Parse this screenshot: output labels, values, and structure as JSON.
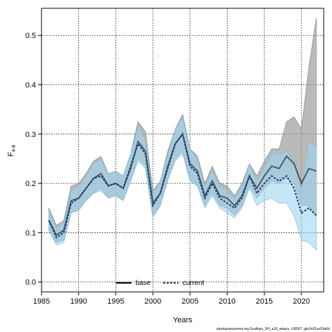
{
  "chart_data": {
    "type": "line",
    "xlabel": "Years",
    "ylabel": "F",
    "ylabel_sub": "4-8",
    "xlim": [
      1985,
      2023
    ],
    "ylim": [
      -0.02,
      0.555
    ],
    "xticks": [
      1985,
      1990,
      1995,
      2000,
      2005,
      2010,
      2015,
      2020
    ],
    "yticks": [
      0.0,
      0.1,
      0.2,
      0.3,
      0.4,
      0.5
    ],
    "ytick_labels": [
      "0.0",
      "0.1",
      "0.2",
      "0.3",
      "0.4",
      "0.5"
    ],
    "grid": true,
    "legend_position": "bottom-center",
    "x": [
      1986,
      1987,
      1988,
      1989,
      1990,
      1991,
      1992,
      1993,
      1994,
      1995,
      1996,
      1997,
      1998,
      1999,
      2000,
      2001,
      2002,
      2003,
      2004,
      2005,
      2006,
      2007,
      2008,
      2009,
      2010,
      2011,
      2012,
      2013,
      2014,
      2015,
      2016,
      2017,
      2018,
      2019,
      2020,
      2021,
      2022
    ],
    "series": [
      {
        "name": "base",
        "color": "#000000",
        "band_color": "#9c9c9c",
        "values": [
          0.125,
          0.095,
          0.105,
          0.165,
          0.17,
          0.19,
          0.21,
          0.22,
          0.195,
          0.2,
          0.19,
          0.23,
          0.285,
          0.265,
          0.16,
          0.18,
          0.235,
          0.28,
          0.3,
          0.24,
          0.225,
          0.175,
          0.205,
          0.175,
          0.17,
          0.155,
          0.175,
          0.215,
          0.19,
          0.215,
          0.235,
          0.23,
          0.255,
          0.24,
          0.2,
          0.23,
          0.225
        ],
        "lower": [
          0.105,
          0.08,
          0.085,
          0.14,
          0.145,
          0.165,
          0.18,
          0.19,
          0.17,
          0.175,
          0.165,
          0.205,
          0.25,
          0.235,
          0.135,
          0.155,
          0.21,
          0.25,
          0.265,
          0.205,
          0.195,
          0.155,
          0.18,
          0.155,
          0.15,
          0.135,
          0.155,
          0.195,
          0.17,
          0.19,
          0.205,
          0.2,
          0.21,
          0.2,
          0.155,
          0.155,
          0.135
        ],
        "upper": [
          0.15,
          0.115,
          0.125,
          0.195,
          0.2,
          0.22,
          0.245,
          0.255,
          0.22,
          0.225,
          0.215,
          0.26,
          0.325,
          0.305,
          0.185,
          0.205,
          0.265,
          0.31,
          0.34,
          0.27,
          0.255,
          0.2,
          0.235,
          0.2,
          0.195,
          0.175,
          0.2,
          0.24,
          0.215,
          0.245,
          0.27,
          0.27,
          0.325,
          0.335,
          0.31,
          0.435,
          0.535
        ]
      },
      {
        "name": "current",
        "color": "#1a3c6e",
        "band_color": "#9fd6f2",
        "values": [
          0.125,
          0.09,
          0.1,
          0.16,
          0.17,
          0.19,
          0.21,
          0.215,
          0.195,
          0.2,
          0.19,
          0.235,
          0.28,
          0.26,
          0.155,
          0.18,
          0.23,
          0.28,
          0.3,
          0.235,
          0.22,
          0.17,
          0.2,
          0.17,
          0.16,
          0.15,
          0.17,
          0.215,
          0.18,
          0.2,
          0.215,
          0.205,
          0.215,
          0.19,
          0.14,
          0.15,
          0.135
        ],
        "lower": [
          0.105,
          0.075,
          0.08,
          0.14,
          0.145,
          0.165,
          0.18,
          0.185,
          0.17,
          0.175,
          0.165,
          0.205,
          0.245,
          0.23,
          0.13,
          0.155,
          0.205,
          0.245,
          0.26,
          0.205,
          0.195,
          0.15,
          0.175,
          0.15,
          0.14,
          0.13,
          0.15,
          0.19,
          0.155,
          0.165,
          0.17,
          0.16,
          0.16,
          0.135,
          0.085,
          0.08,
          0.065
        ],
        "upper": [
          0.145,
          0.11,
          0.12,
          0.185,
          0.195,
          0.215,
          0.24,
          0.25,
          0.22,
          0.225,
          0.215,
          0.26,
          0.315,
          0.29,
          0.18,
          0.205,
          0.26,
          0.31,
          0.335,
          0.27,
          0.25,
          0.195,
          0.225,
          0.195,
          0.185,
          0.17,
          0.195,
          0.24,
          0.205,
          0.235,
          0.26,
          0.26,
          0.265,
          0.245,
          0.19,
          0.285,
          0.275
        ]
      }
    ]
  },
  "footer_text": "stockassessment.org,Scallops_SH_a18_wtaurv, r18567, gitc9c81ac53a0d"
}
